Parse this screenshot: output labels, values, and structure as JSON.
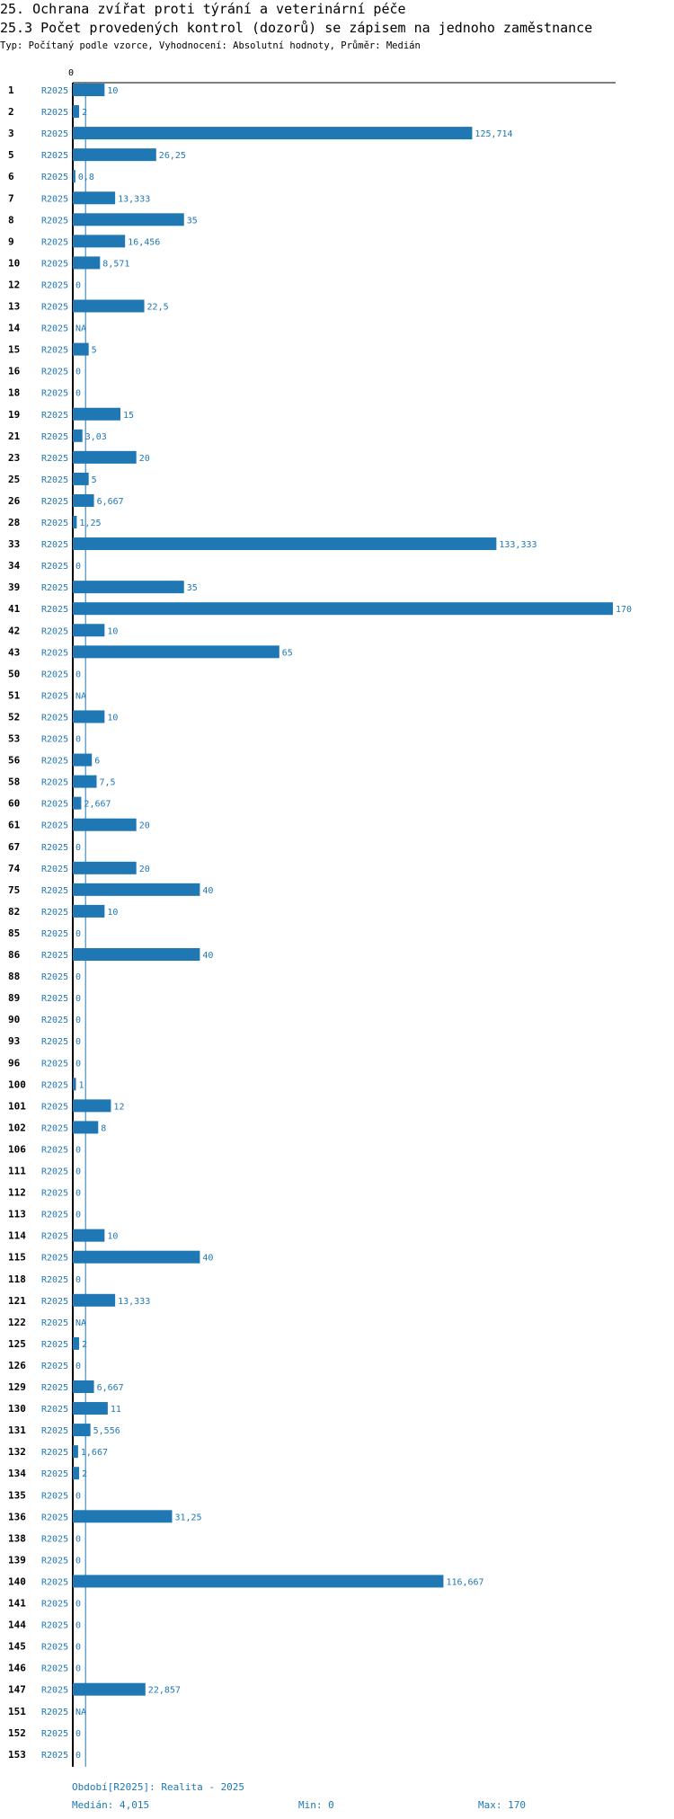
{
  "header": {
    "title": "25. Ochrana zvířat proti týrání a veterinární péče",
    "subtitle": "25.3 Počet provedených kontrol (dozorů) se zápisem na jednoho zaměstnance",
    "info": "Typ: Počítaný podle vzorce, Vyhodnocení: Absolutní hodnoty, Průměr: Medián"
  },
  "footer": {
    "period": "Období[R2025]: Realita - 2025",
    "median": "Medián: 4,015",
    "min": "Min: 0",
    "max": "Max: 170"
  },
  "colors": {
    "bar": "#1f77b4",
    "label": "#1f77b4",
    "axis": "#000000"
  },
  "chart_data": {
    "type": "bar",
    "orientation": "horizontal",
    "axis_tick_label": "0",
    "xlim": [
      0,
      170
    ],
    "median": 4.015,
    "series_label": "R2025",
    "rows": [
      {
        "id": "1",
        "value": 10,
        "label": "10"
      },
      {
        "id": "2",
        "value": 2,
        "label": "2"
      },
      {
        "id": "3",
        "value": 125.714,
        "label": "125,714"
      },
      {
        "id": "5",
        "value": 26.25,
        "label": "26,25"
      },
      {
        "id": "6",
        "value": 0.8,
        "label": "0,8"
      },
      {
        "id": "7",
        "value": 13.333,
        "label": "13,333"
      },
      {
        "id": "8",
        "value": 35,
        "label": "35"
      },
      {
        "id": "9",
        "value": 16.456,
        "label": "16,456"
      },
      {
        "id": "10",
        "value": 8.571,
        "label": "8,571"
      },
      {
        "id": "12",
        "value": 0,
        "label": "0"
      },
      {
        "id": "13",
        "value": 22.5,
        "label": "22,5"
      },
      {
        "id": "14",
        "value": null,
        "label": "NA"
      },
      {
        "id": "15",
        "value": 5,
        "label": "5"
      },
      {
        "id": "16",
        "value": 0,
        "label": "0"
      },
      {
        "id": "18",
        "value": 0,
        "label": "0"
      },
      {
        "id": "19",
        "value": 15,
        "label": "15"
      },
      {
        "id": "21",
        "value": 3.03,
        "label": "3,03"
      },
      {
        "id": "23",
        "value": 20,
        "label": "20"
      },
      {
        "id": "25",
        "value": 5,
        "label": "5"
      },
      {
        "id": "26",
        "value": 6.667,
        "label": "6,667"
      },
      {
        "id": "28",
        "value": 1.25,
        "label": "1,25"
      },
      {
        "id": "33",
        "value": 133.333,
        "label": "133,333"
      },
      {
        "id": "34",
        "value": 0,
        "label": "0"
      },
      {
        "id": "39",
        "value": 35,
        "label": "35"
      },
      {
        "id": "41",
        "value": 170,
        "label": "170"
      },
      {
        "id": "42",
        "value": 10,
        "label": "10"
      },
      {
        "id": "43",
        "value": 65,
        "label": "65"
      },
      {
        "id": "50",
        "value": 0,
        "label": "0"
      },
      {
        "id": "51",
        "value": null,
        "label": "NA"
      },
      {
        "id": "52",
        "value": 10,
        "label": "10"
      },
      {
        "id": "53",
        "value": 0,
        "label": "0"
      },
      {
        "id": "56",
        "value": 6,
        "label": "6"
      },
      {
        "id": "58",
        "value": 7.5,
        "label": "7,5"
      },
      {
        "id": "60",
        "value": 2.667,
        "label": "2,667"
      },
      {
        "id": "61",
        "value": 20,
        "label": "20"
      },
      {
        "id": "67",
        "value": 0,
        "label": "0"
      },
      {
        "id": "74",
        "value": 20,
        "label": "20"
      },
      {
        "id": "75",
        "value": 40,
        "label": "40"
      },
      {
        "id": "82",
        "value": 10,
        "label": "10"
      },
      {
        "id": "85",
        "value": 0,
        "label": "0"
      },
      {
        "id": "86",
        "value": 40,
        "label": "40"
      },
      {
        "id": "88",
        "value": 0,
        "label": "0"
      },
      {
        "id": "89",
        "value": 0,
        "label": "0"
      },
      {
        "id": "90",
        "value": 0,
        "label": "0"
      },
      {
        "id": "93",
        "value": 0,
        "label": "0"
      },
      {
        "id": "96",
        "value": 0,
        "label": "0"
      },
      {
        "id": "100",
        "value": 1,
        "label": "1"
      },
      {
        "id": "101",
        "value": 12,
        "label": "12"
      },
      {
        "id": "102",
        "value": 8,
        "label": "8"
      },
      {
        "id": "106",
        "value": 0,
        "label": "0"
      },
      {
        "id": "111",
        "value": 0,
        "label": "0"
      },
      {
        "id": "112",
        "value": 0,
        "label": "0"
      },
      {
        "id": "113",
        "value": 0,
        "label": "0"
      },
      {
        "id": "114",
        "value": 10,
        "label": "10"
      },
      {
        "id": "115",
        "value": 40,
        "label": "40"
      },
      {
        "id": "118",
        "value": 0,
        "label": "0"
      },
      {
        "id": "121",
        "value": 13.333,
        "label": "13,333"
      },
      {
        "id": "122",
        "value": null,
        "label": "NA"
      },
      {
        "id": "125",
        "value": 2,
        "label": "2"
      },
      {
        "id": "126",
        "value": 0,
        "label": "0"
      },
      {
        "id": "129",
        "value": 6.667,
        "label": "6,667"
      },
      {
        "id": "130",
        "value": 11,
        "label": "11"
      },
      {
        "id": "131",
        "value": 5.556,
        "label": "5,556"
      },
      {
        "id": "132",
        "value": 1.667,
        "label": "1,667"
      },
      {
        "id": "134",
        "value": 2,
        "label": "2"
      },
      {
        "id": "135",
        "value": 0,
        "label": "0"
      },
      {
        "id": "136",
        "value": 31.25,
        "label": "31,25"
      },
      {
        "id": "138",
        "value": 0,
        "label": "0"
      },
      {
        "id": "139",
        "value": 0,
        "label": "0"
      },
      {
        "id": "140",
        "value": 116.667,
        "label": "116,667"
      },
      {
        "id": "141",
        "value": 0,
        "label": "0"
      },
      {
        "id": "144",
        "value": 0,
        "label": "0"
      },
      {
        "id": "145",
        "value": 0,
        "label": "0"
      },
      {
        "id": "146",
        "value": 0,
        "label": "0"
      },
      {
        "id": "147",
        "value": 22.857,
        "label": "22,857"
      },
      {
        "id": "151",
        "value": null,
        "label": "NA"
      },
      {
        "id": "152",
        "value": 0,
        "label": "0"
      },
      {
        "id": "153",
        "value": 0,
        "label": "0"
      }
    ]
  }
}
